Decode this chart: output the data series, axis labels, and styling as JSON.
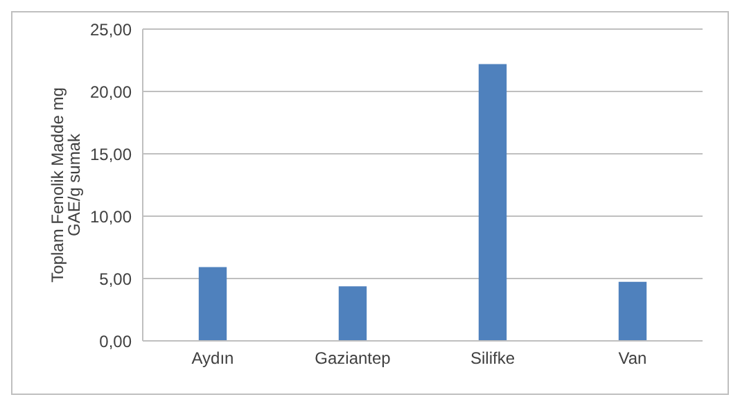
{
  "chart_data": {
    "type": "bar",
    "ylabel": "Toplam Fenolik Madde mg GAE/g sumak",
    "categories": [
      "Aydın",
      "Gaziantep",
      "Silifke",
      "Van"
    ],
    "values": [
      5.91,
      4.38,
      22.19,
      4.74
    ],
    "color": "#4f81bd",
    "ylim": [
      0,
      25
    ],
    "yticks": [
      {
        "value": 0,
        "label": "0,00"
      },
      {
        "value": 5,
        "label": "5,00"
      },
      {
        "value": 10,
        "label": "10,00"
      },
      {
        "value": 15,
        "label": "15,00"
      },
      {
        "value": 20,
        "label": "20,00"
      },
      {
        "value": 25,
        "label": "25,00"
      }
    ],
    "grid": "y"
  }
}
